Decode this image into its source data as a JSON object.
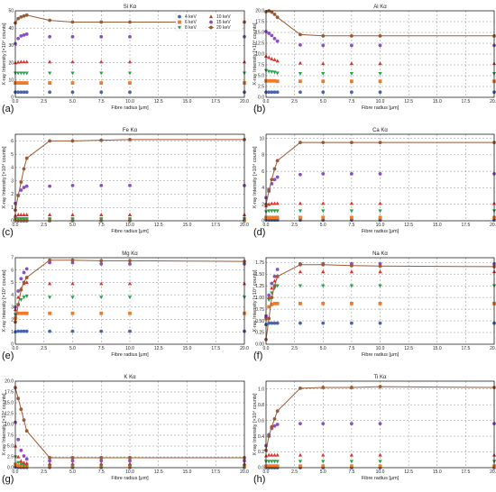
{
  "legend": [
    {
      "label": "4 keV",
      "color": "#4565b0",
      "marker": "circle"
    },
    {
      "label": "6 keV",
      "color": "#ef7a2a",
      "marker": "square"
    },
    {
      "label": "8 keV",
      "color": "#2aa04a",
      "marker": "triangle-down"
    },
    {
      "label": "10 keV",
      "color": "#e0302a",
      "marker": "triangle-up"
    },
    {
      "label": "15 keV",
      "color": "#8a4fc2",
      "marker": "circle"
    },
    {
      "label": "20 keV",
      "color": "#9b5a36",
      "marker": "circle",
      "line": true
    }
  ],
  "chart_data": [
    {
      "type": "scatter",
      "letter": "(a)",
      "title": "Si Kα",
      "xlabel": "Fibre radius [μm]",
      "ylabel": "X-ray Intensity [×10⁴ counts]",
      "xlim": [
        0,
        20
      ],
      "ylim": [
        0,
        50
      ],
      "xticks": [
        "0.0",
        "2.5",
        "5.0",
        "7.5",
        "10.0",
        "12.5",
        "15.0",
        "17.5",
        "20.0"
      ],
      "yticks": [
        "0",
        "10",
        "20",
        "30",
        "40",
        "50"
      ],
      "x": [
        0,
        0.25,
        0.5,
        0.75,
        1,
        3,
        5,
        7.5,
        10,
        20
      ],
      "series": [
        {
          "name": "4 keV",
          "values": [
            3,
            3,
            3,
            3,
            3,
            3,
            3,
            3,
            3,
            3
          ]
        },
        {
          "name": "6 keV",
          "values": [
            8.3,
            8.3,
            8.3,
            8.3,
            8.3,
            8.3,
            8.3,
            8.3,
            8.3,
            8.3
          ]
        },
        {
          "name": "8 keV",
          "values": [
            14,
            14,
            14,
            14,
            14,
            14,
            14,
            14,
            14,
            14
          ]
        },
        {
          "name": "10 keV",
          "values": [
            20,
            20.3,
            20.5,
            20.5,
            20.5,
            20.5,
            20.5,
            20.5,
            20.5,
            20.5
          ]
        },
        {
          "name": "15 keV",
          "values": [
            31,
            34,
            35.5,
            36,
            36.5,
            35,
            35,
            35,
            35,
            35
          ]
        },
        {
          "name": "20 keV",
          "values": [
            43,
            45.5,
            46.5,
            47,
            47.5,
            44.5,
            43.5,
            43.5,
            43.5,
            43.5
          ]
        }
      ]
    },
    {
      "type": "scatter",
      "letter": "(b)",
      "title": "Al Kα",
      "xlabel": "Fibre radius [μm]",
      "ylabel": "X-ray Intensity [×10⁴ counts]",
      "xlim": [
        0,
        20
      ],
      "ylim": [
        0,
        20
      ],
      "xticks": [
        "0.0",
        "2.5",
        "5.0",
        "7.5",
        "10.0",
        "12.5",
        "15.0",
        "17.5",
        "20.0"
      ],
      "yticks": [
        "0.0",
        "2.5",
        "5.0",
        "7.5",
        "10.0",
        "12.5",
        "15.0",
        "17.5",
        "20.0"
      ],
      "x": [
        0,
        0.25,
        0.5,
        0.75,
        1,
        3,
        5,
        7.5,
        10,
        20
      ],
      "series": [
        {
          "name": "4 keV",
          "values": [
            1.2,
            1.2,
            1.2,
            1.2,
            1.2,
            1.2,
            1.2,
            1.2,
            1.2,
            1.2
          ]
        },
        {
          "name": "6 keV",
          "values": [
            3.8,
            3.8,
            3.8,
            3.8,
            3.7,
            3.7,
            3.7,
            3.7,
            3.7,
            3.7
          ]
        },
        {
          "name": "8 keV",
          "values": [
            6.2,
            6,
            5.9,
            5.8,
            5.6,
            5.5,
            5.5,
            5.5,
            5.5,
            5.5
          ]
        },
        {
          "name": "10 keV",
          "values": [
            9.5,
            9.2,
            8.9,
            8.7,
            8.4,
            7.9,
            7.8,
            7.8,
            7.8,
            7.8
          ]
        },
        {
          "name": "15 keV",
          "values": [
            15.2,
            14.8,
            14.3,
            13.6,
            13,
            12.1,
            12,
            12,
            12,
            12
          ]
        },
        {
          "name": "20 keV",
          "values": [
            19.8,
            20,
            19.7,
            19.2,
            18.5,
            14.5,
            14.2,
            14.2,
            14.2,
            14.2
          ]
        }
      ]
    },
    {
      "type": "scatter",
      "letter": "(c)",
      "title": "Fe Kα",
      "xlabel": "Fibre radius [μm]",
      "ylabel": "X-ray Intensity [×10⁴ counts]",
      "xlim": [
        0,
        20
      ],
      "ylim": [
        0,
        6.5
      ],
      "xticks": [
        "0.0",
        "2.5",
        "5.0",
        "7.5",
        "10.0",
        "12.5",
        "15.0",
        "17.5",
        "20.0"
      ],
      "yticks": [
        "0",
        "1",
        "2",
        "3",
        "4",
        "5",
        "6"
      ],
      "x": [
        0,
        0.25,
        0.5,
        0.75,
        1,
        3,
        5,
        7.5,
        10,
        20
      ],
      "series": [
        {
          "name": "4 keV",
          "values": [
            0,
            0,
            0,
            0,
            0,
            0,
            0,
            0,
            0,
            0
          ]
        },
        {
          "name": "6 keV",
          "values": [
            0.05,
            0.05,
            0.05,
            0.05,
            0.05,
            0.05,
            0.05,
            0.05,
            0.05,
            0.05
          ]
        },
        {
          "name": "8 keV",
          "values": [
            0.15,
            0.15,
            0.15,
            0.15,
            0.15,
            0.15,
            0.15,
            0.15,
            0.15,
            0.15
          ]
        },
        {
          "name": "10 keV",
          "values": [
            0.4,
            0.45,
            0.45,
            0.45,
            0.45,
            0.45,
            0.45,
            0.45,
            0.45,
            0.45
          ]
        },
        {
          "name": "15 keV",
          "values": [
            1.3,
            1.9,
            2.3,
            2.5,
            2.6,
            2.6,
            2.65,
            2.65,
            2.65,
            2.65
          ]
        },
        {
          "name": "20 keV",
          "values": [
            0.8,
            1.9,
            2.9,
            3.9,
            4.7,
            6,
            6,
            6.05,
            6.1,
            6.1
          ]
        }
      ]
    },
    {
      "type": "scatter",
      "letter": "(d)",
      "title": "Ca Kα",
      "xlabel": "Fibre radius [μm]",
      "ylabel": "X-ray Intensity [×10⁴ counts]",
      "xlim": [
        0,
        20
      ],
      "ylim": [
        0,
        10.5
      ],
      "xticks": [
        "0.0",
        "2.5",
        "5.0",
        "7.5",
        "10.0",
        "12.5",
        "15.0",
        "17.5",
        "20.0"
      ],
      "yticks": [
        "0",
        "2",
        "4",
        "6",
        "8",
        "10"
      ],
      "x": [
        0,
        0.25,
        0.5,
        0.75,
        1,
        3,
        5,
        7.5,
        10,
        20
      ],
      "series": [
        {
          "name": "4 keV",
          "values": [
            0.1,
            0.1,
            0.1,
            0.1,
            0.1,
            0.1,
            0.1,
            0.1,
            0.1,
            0.1
          ]
        },
        {
          "name": "6 keV",
          "values": [
            0.4,
            0.4,
            0.4,
            0.4,
            0.4,
            0.4,
            0.4,
            0.4,
            0.4,
            0.4
          ]
        },
        {
          "name": "8 keV",
          "values": [
            1.1,
            1.2,
            1.2,
            1.2,
            1.2,
            1.2,
            1.2,
            1.2,
            1.2,
            1.2
          ]
        },
        {
          "name": "10 keV",
          "values": [
            1.8,
            2,
            2.1,
            2.1,
            2.1,
            2.1,
            2.1,
            2.1,
            2.1,
            2.1
          ]
        },
        {
          "name": "15 keV",
          "values": [
            2.8,
            3.8,
            4.5,
            5,
            5.3,
            5.6,
            5.7,
            5.7,
            5.7,
            5.7
          ]
        },
        {
          "name": "20 keV",
          "values": [
            2,
            3.6,
            5,
            6.3,
            7.3,
            9.5,
            9.5,
            9.5,
            9.5,
            9.5
          ]
        }
      ]
    },
    {
      "type": "scatter",
      "letter": "(e)",
      "title": "Mg Kα",
      "xlabel": "Fibre radius [μm]",
      "ylabel": "X-ray Intensity [×10⁴ counts]",
      "xlim": [
        0,
        20
      ],
      "ylim": [
        0,
        7
      ],
      "xticks": [
        "0.0",
        "2.5",
        "5.0",
        "7.5",
        "10.0",
        "12.5",
        "15.0",
        "17.5",
        "20.0"
      ],
      "yticks": [
        "0",
        "1",
        "2",
        "3",
        "4",
        "5",
        "6",
        "7"
      ],
      "x": [
        0,
        0.25,
        0.5,
        0.75,
        1,
        3,
        5,
        7.5,
        10,
        20
      ],
      "series": [
        {
          "name": "4 keV",
          "values": [
            1,
            1.05,
            1.05,
            1.05,
            1.05,
            1.05,
            1.05,
            1.05,
            1.05,
            1.05
          ]
        },
        {
          "name": "6 keV",
          "values": [
            2.1,
            2.5,
            2.5,
            2.5,
            2.5,
            2.5,
            2.5,
            2.5,
            2.5,
            2.5
          ]
        },
        {
          "name": "8 keV",
          "values": [
            2.4,
            3.2,
            3.6,
            3.8,
            3.9,
            3.8,
            3.8,
            3.8,
            3.8,
            3.8
          ]
        },
        {
          "name": "10 keV",
          "values": [
            2.8,
            3.8,
            4.5,
            4.9,
            5,
            4.9,
            4.9,
            4.9,
            4.9,
            4.9
          ]
        },
        {
          "name": "15 keV",
          "values": [
            3,
            4.3,
            5.3,
            5.8,
            6.1,
            6.6,
            6.6,
            6.5,
            6.5,
            6.5
          ]
        },
        {
          "name": "20 keV",
          "values": [
            1.8,
            3.2,
            4.4,
            5,
            5.4,
            6.8,
            6.8,
            6.75,
            6.75,
            6.7
          ]
        }
      ]
    },
    {
      "type": "scatter",
      "letter": "(f)",
      "title": "Na Kα",
      "xlabel": "Fibre radius [μm]",
      "ylabel": "X-ray Intensity [×10⁴ counts]",
      "xlim": [
        0,
        20
      ],
      "ylim": [
        0,
        1.85
      ],
      "xticks": [
        "0.0",
        "2.5",
        "5.0",
        "7.5",
        "10.0",
        "12.5",
        "15.0",
        "17.5",
        "20.0"
      ],
      "yticks": [
        "0.00",
        "0.25",
        "0.50",
        "0.75",
        "1.00",
        "1.25",
        "1.50",
        "1.75"
      ],
      "x": [
        0,
        0.25,
        0.5,
        0.75,
        1,
        3,
        5,
        7.5,
        10,
        20
      ],
      "series": [
        {
          "name": "4 keV",
          "values": [
            0.42,
            0.45,
            0.45,
            0.45,
            0.45,
            0.45,
            0.45,
            0.45,
            0.45,
            0.45
          ]
        },
        {
          "name": "6 keV",
          "values": [
            0.55,
            0.8,
            0.85,
            0.87,
            0.87,
            0.87,
            0.87,
            0.87,
            0.87,
            0.87
          ]
        },
        {
          "name": "8 keV",
          "values": [
            0.6,
            0.95,
            1.1,
            1.2,
            1.25,
            1.25,
            1.25,
            1.25,
            1.25,
            1.25
          ]
        },
        {
          "name": "10 keV",
          "values": [
            0.6,
            1,
            1.2,
            1.35,
            1.45,
            1.55,
            1.55,
            1.55,
            1.55,
            1.55
          ]
        },
        {
          "name": "15 keV",
          "values": [
            0.6,
            1.05,
            1.3,
            1.45,
            1.6,
            1.72,
            1.72,
            1.72,
            1.72,
            1.72
          ]
        },
        {
          "name": "20 keV",
          "values": [
            0.1,
            0.55,
            1,
            1.25,
            1.45,
            1.7,
            1.7,
            1.68,
            1.67,
            1.66
          ]
        }
      ]
    },
    {
      "type": "scatter",
      "letter": "(g)",
      "title": "K Kα",
      "xlabel": "Fibre radius [μm]",
      "ylabel": "X-ray Intensity [×10⁴ counts]",
      "xlim": [
        0,
        20
      ],
      "ylim": [
        0,
        20
      ],
      "xticks": [
        "0.0",
        "2.5",
        "5.0",
        "7.5",
        "10.0",
        "12.5",
        "15.0",
        "17.5",
        "20.0"
      ],
      "yticks": [
        "0.0",
        "2.5",
        "5.0",
        "7.5",
        "10.0",
        "12.5",
        "15.0",
        "17.5",
        "20.0"
      ],
      "x": [
        0,
        0.25,
        0.5,
        0.75,
        1,
        3,
        5,
        7.5,
        10,
        20
      ],
      "series": [
        {
          "name": "4 keV",
          "values": [
            0.1,
            0.05,
            0.05,
            0.05,
            0.05,
            0.05,
            0.05,
            0.05,
            0.05,
            0.05
          ]
        },
        {
          "name": "6 keV",
          "values": [
            0.8,
            0.4,
            0.3,
            0.3,
            0.3,
            0.3,
            0.3,
            0.3,
            0.3,
            0.3
          ]
        },
        {
          "name": "8 keV",
          "values": [
            2.5,
            1.2,
            0.8,
            0.6,
            0.6,
            0.5,
            0.5,
            0.5,
            0.5,
            0.5
          ]
        },
        {
          "name": "10 keV",
          "values": [
            5,
            2.5,
            1.5,
            1.1,
            1,
            0.9,
            0.9,
            0.9,
            0.9,
            0.9
          ]
        },
        {
          "name": "15 keV",
          "values": [
            10.5,
            6.5,
            4,
            2.7,
            2,
            1.6,
            1.6,
            1.6,
            1.6,
            1.6
          ]
        },
        {
          "name": "20 keV",
          "values": [
            18.5,
            16,
            13.5,
            11,
            8.5,
            2.3,
            2.3,
            2.3,
            2.3,
            2.3
          ]
        }
      ]
    },
    {
      "type": "scatter",
      "letter": "(h)",
      "title": "Ti Kα",
      "xlabel": "Fibre radius [μm]",
      "ylabel": "X-ray Intensity [×10⁴ counts]",
      "xlim": [
        0,
        20
      ],
      "ylim": [
        0,
        1.1
      ],
      "xticks": [
        "0.0",
        "2.5",
        "5.0",
        "7.5",
        "10.0",
        "12.5",
        "15.0",
        "17.5",
        "20.0"
      ],
      "yticks": [
        "0.0",
        "0.2",
        "0.4",
        "0.6",
        "0.8",
        "1.0"
      ],
      "x": [
        0,
        0.25,
        0.5,
        0.75,
        1,
        3,
        5,
        7.5,
        10,
        20
      ],
      "series": [
        {
          "name": "4 keV",
          "values": [
            0,
            0,
            0,
            0,
            0,
            0,
            0,
            0,
            0,
            0
          ]
        },
        {
          "name": "6 keV",
          "values": [
            0.02,
            0.02,
            0.02,
            0.02,
            0.02,
            0.02,
            0.02,
            0.02,
            0.02,
            0.02
          ]
        },
        {
          "name": "8 keV",
          "values": [
            0.08,
            0.08,
            0.08,
            0.08,
            0.08,
            0.08,
            0.08,
            0.08,
            0.08,
            0.08
          ]
        },
        {
          "name": "10 keV",
          "values": [
            0.15,
            0.16,
            0.16,
            0.16,
            0.16,
            0.16,
            0.16,
            0.16,
            0.16,
            0.16
          ]
        },
        {
          "name": "15 keV",
          "values": [
            0.28,
            0.42,
            0.5,
            0.53,
            0.55,
            0.56,
            0.56,
            0.56,
            0.56,
            0.56
          ]
        },
        {
          "name": "20 keV",
          "values": [
            0.22,
            0.4,
            0.52,
            0.62,
            0.72,
            1.01,
            1.02,
            1.02,
            1.03,
            1.02
          ]
        }
      ]
    }
  ]
}
